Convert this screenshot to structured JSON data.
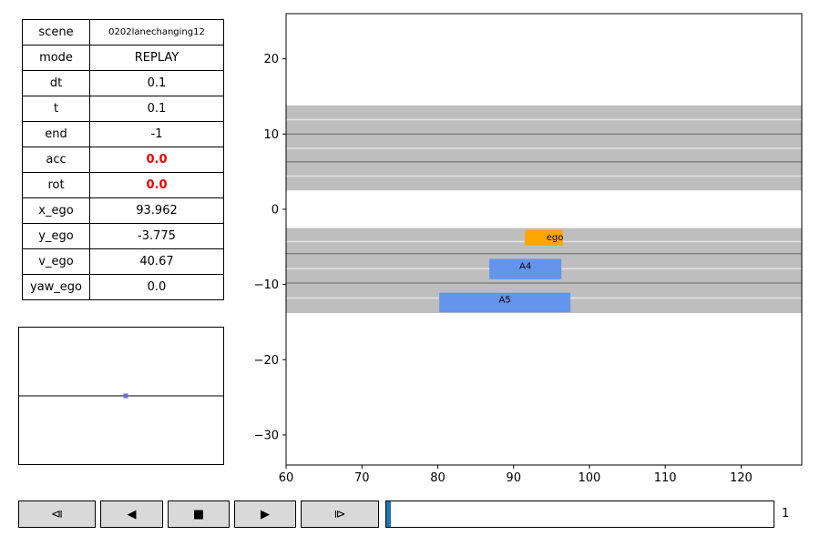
{
  "info_table": [
    {
      "key": "scene",
      "value": "0202lanechanging12",
      "style": "small"
    },
    {
      "key": "mode",
      "value": "REPLAY",
      "style": ""
    },
    {
      "key": "dt",
      "value": "0.1",
      "style": ""
    },
    {
      "key": "t",
      "value": "0.1",
      "style": ""
    },
    {
      "key": "end",
      "value": "-1",
      "style": ""
    },
    {
      "key": "acc",
      "value": "0.0",
      "style": "red"
    },
    {
      "key": "rot",
      "value": "0.0",
      "style": "red"
    },
    {
      "key": "x_ego",
      "value": "93.962",
      "style": ""
    },
    {
      "key": "y_ego",
      "value": "-3.775",
      "style": ""
    },
    {
      "key": "v_ego",
      "value": "40.67",
      "style": ""
    },
    {
      "key": "yaw_ego",
      "value": "0.0",
      "style": ""
    }
  ],
  "chart_data": {
    "type": "scatter",
    "xlim": [
      60,
      128
    ],
    "ylim": [
      -34,
      26
    ],
    "x_ticks": [
      60,
      70,
      80,
      90,
      100,
      110,
      120
    ],
    "y_ticks": [
      -30,
      -20,
      -10,
      0,
      10,
      20
    ],
    "road_bands": [
      {
        "y_min": 2.5,
        "y_max": 13.8
      },
      {
        "y_min": -13.8,
        "y_max": -2.5
      }
    ],
    "dark_lane_lines": [
      10.0,
      6.3,
      -5.9,
      -9.8
    ],
    "light_lane_lines": [
      11.9,
      8.1,
      4.4,
      -4.3,
      -7.9,
      -11.8
    ],
    "vehicles": [
      {
        "label": "ego",
        "x_min": 91.5,
        "x_max": 96.5,
        "y_min": -4.8,
        "y_max": -2.8,
        "color": "#ffa500"
      },
      {
        "label": "A4",
        "x_min": 86.8,
        "x_max": 96.3,
        "y_min": -9.3,
        "y_max": -6.6,
        "color": "#6495ed"
      },
      {
        "label": "A5",
        "x_min": 80.2,
        "x_max": 97.5,
        "y_min": -13.7,
        "y_max": -11.1,
        "color": "#6495ed"
      }
    ]
  },
  "mini_plot": {
    "line_y": 0,
    "point": {
      "x": 0,
      "y": 0
    }
  },
  "controls": [
    {
      "name": "step-back-button",
      "symbol": "⧏",
      "label": "step back"
    },
    {
      "name": "play-reverse-button",
      "symbol": "◀",
      "label": "play reverse"
    },
    {
      "name": "stop-button",
      "symbol": "■",
      "label": "stop"
    },
    {
      "name": "play-button",
      "symbol": "▶",
      "label": "play"
    },
    {
      "name": "step-forward-button",
      "symbol": "⧐",
      "label": "step forward"
    }
  ],
  "slider": {
    "value": "1",
    "fraction": 0.01
  }
}
